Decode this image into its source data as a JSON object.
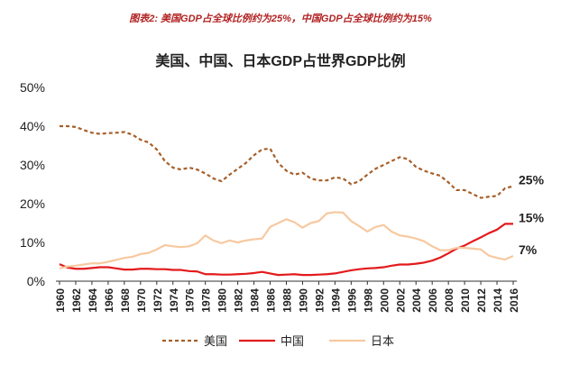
{
  "chart_data": {
    "type": "line",
    "caption": "图表2: 美国GDP占全球比例约为25%，中国GDP占全球比例约为15%",
    "title": "美国、中国、日本GDP占世界GDP比例",
    "x": [
      1960,
      1961,
      1962,
      1963,
      1964,
      1965,
      1966,
      1967,
      1968,
      1969,
      1970,
      1971,
      1972,
      1973,
      1974,
      1975,
      1976,
      1977,
      1978,
      1979,
      1980,
      1981,
      1982,
      1983,
      1984,
      1985,
      1986,
      1987,
      1988,
      1989,
      1990,
      1991,
      1992,
      1993,
      1994,
      1995,
      1996,
      1997,
      1998,
      1999,
      2000,
      2001,
      2002,
      2003,
      2004,
      2005,
      2006,
      2007,
      2008,
      2009,
      2010,
      2011,
      2012,
      2013,
      2014,
      2015,
      2016
    ],
    "xlim": [
      1960,
      2016
    ],
    "xticks": [
      1960,
      1962,
      1964,
      1966,
      1968,
      1970,
      1972,
      1974,
      1976,
      1978,
      1980,
      1982,
      1984,
      1986,
      1988,
      1990,
      1992,
      1994,
      1996,
      1998,
      2000,
      2002,
      2004,
      2006,
      2008,
      2010,
      2012,
      2014,
      2016
    ],
    "ylim": [
      0,
      50
    ],
    "yticks": [
      {
        "value": 0,
        "label": "0%"
      },
      {
        "value": 10,
        "label": "10%"
      },
      {
        "value": 20,
        "label": "20%"
      },
      {
        "value": 30,
        "label": "30%"
      },
      {
        "value": 40,
        "label": "40%"
      },
      {
        "value": 50,
        "label": "50%"
      }
    ],
    "legend": "bottom",
    "series": [
      {
        "name": "美国",
        "color": "#a65f2a",
        "dashed": true,
        "end_label": "25%",
        "values": [
          40,
          40,
          39.8,
          39,
          38.3,
          38,
          38.2,
          38.3,
          38.5,
          37.8,
          36.5,
          35.8,
          34,
          31,
          29.3,
          28.8,
          29.3,
          28.8,
          27.8,
          26.5,
          25.8,
          27.5,
          29,
          30.5,
          32.5,
          34,
          34.2,
          30.5,
          28.5,
          27.5,
          28,
          26.5,
          26,
          26,
          26.8,
          26.5,
          25,
          25.8,
          27.5,
          29,
          30,
          31,
          32,
          31.5,
          29.5,
          28.5,
          27.8,
          27.2,
          25.5,
          23.5,
          23.5,
          22.5,
          21.5,
          21.8,
          22,
          24,
          24.5
        ]
      },
      {
        "name": "中国",
        "color": "#e31a1c",
        "dashed": false,
        "end_label": "15%",
        "values": [
          4.4,
          3.5,
          3.2,
          3.2,
          3.4,
          3.6,
          3.6,
          3.3,
          3.0,
          3.0,
          3.2,
          3.2,
          3.1,
          3.1,
          2.9,
          2.9,
          2.6,
          2.5,
          1.8,
          1.8,
          1.7,
          1.7,
          1.8,
          1.9,
          2.1,
          2.4,
          2.0,
          1.6,
          1.7,
          1.8,
          1.6,
          1.6,
          1.7,
          1.8,
          2.0,
          2.4,
          2.8,
          3.1,
          3.3,
          3.4,
          3.6,
          4.0,
          4.3,
          4.3,
          4.5,
          4.8,
          5.3,
          6.1,
          7.2,
          8.4,
          9.2,
          10.3,
          11.3,
          12.4,
          13.3,
          14.8,
          14.8
        ]
      },
      {
        "name": "日本",
        "color": "#f7c9a0",
        "dashed": false,
        "end_label": "7%",
        "values": [
          3.3,
          3.8,
          4.0,
          4.3,
          4.6,
          4.6,
          5.0,
          5.5,
          6.0,
          6.3,
          7.0,
          7.3,
          8.2,
          9.3,
          9.0,
          8.8,
          9.0,
          9.8,
          11.8,
          10.5,
          9.8,
          10.5,
          10.0,
          10.5,
          10.8,
          11.0,
          14.0,
          15.0,
          16.0,
          15.2,
          13.8,
          15.0,
          15.5,
          17.5,
          17.8,
          17.7,
          15.5,
          14.2,
          12.8,
          14.0,
          14.5,
          12.8,
          11.8,
          11.5,
          11.0,
          10.3,
          9.0,
          8.0,
          8.0,
          8.6,
          8.6,
          8.4,
          8.2,
          6.6,
          6.0,
          5.6,
          6.5
        ]
      }
    ]
  }
}
